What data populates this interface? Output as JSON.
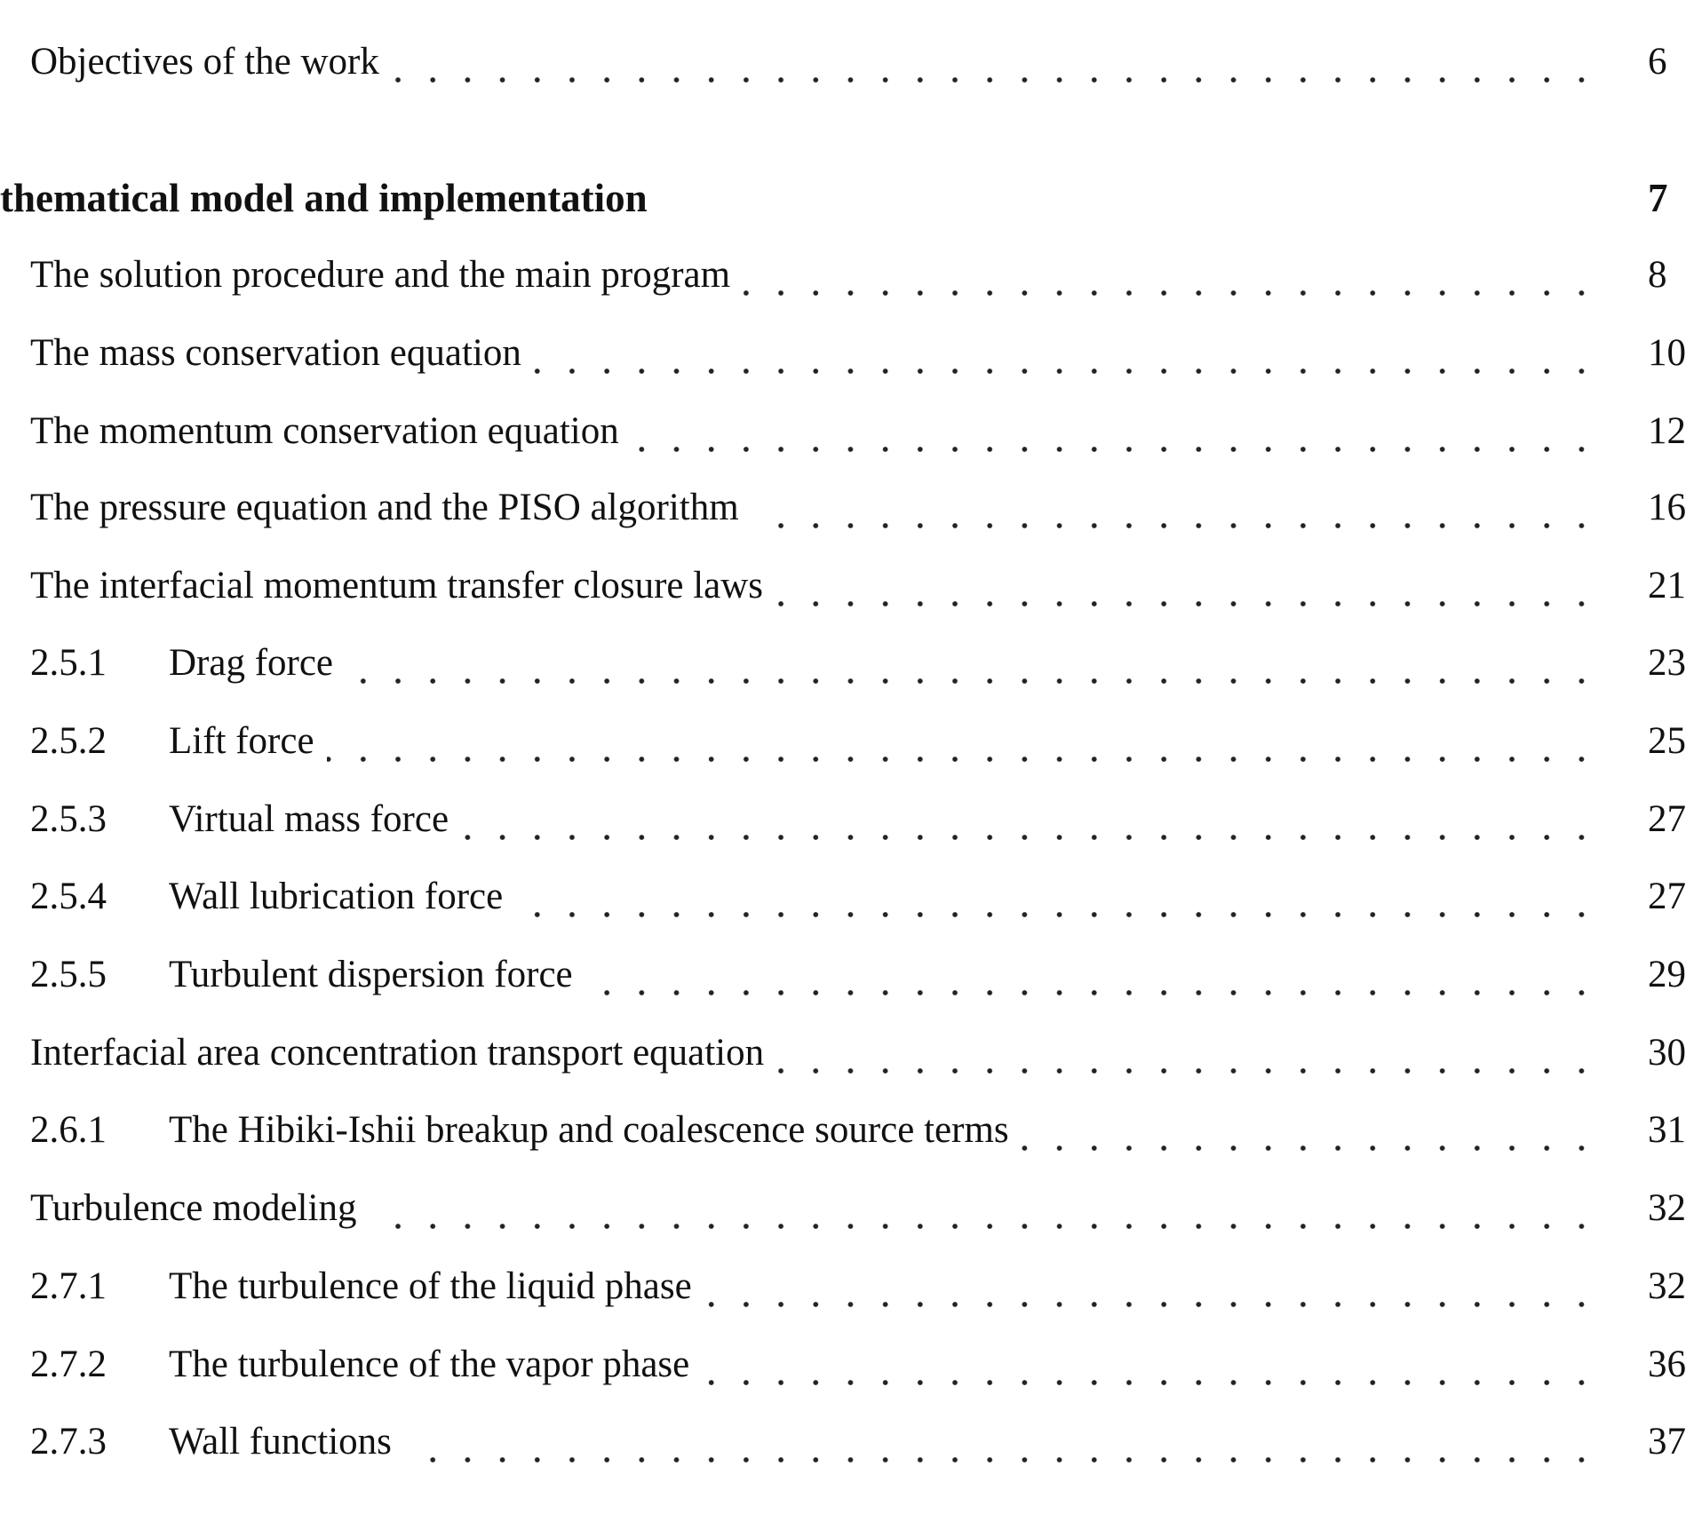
{
  "toc": [
    {
      "kind": "section",
      "title": "Objectives of the work",
      "page": "6"
    },
    {
      "kind": "chapter",
      "title": "thematical model and implementation",
      "page": "7"
    },
    {
      "kind": "section",
      "title": "The solution procedure and the main program",
      "page": "8"
    },
    {
      "kind": "section",
      "title": "The mass conservation equation",
      "page": "10"
    },
    {
      "kind": "section",
      "title": "The momentum conservation equation",
      "page": "12"
    },
    {
      "kind": "section",
      "title": "The pressure equation and the PISO algorithm",
      "page": "16"
    },
    {
      "kind": "section",
      "title": "The interfacial momentum transfer closure laws",
      "page": "21"
    },
    {
      "kind": "subsection",
      "number": "2.5.1",
      "title": "Drag force",
      "page": "23"
    },
    {
      "kind": "subsection",
      "number": "2.5.2",
      "title": "Lift force",
      "page": "25"
    },
    {
      "kind": "subsection",
      "number": "2.5.3",
      "title": "Virtual mass force",
      "page": "27"
    },
    {
      "kind": "subsection",
      "number": "2.5.4",
      "title": "Wall lubrication force",
      "page": "27"
    },
    {
      "kind": "subsection",
      "number": "2.5.5",
      "title": "Turbulent dispersion force",
      "page": "29"
    },
    {
      "kind": "section",
      "title": "Interfacial area concentration transport equation",
      "page": "30"
    },
    {
      "kind": "subsection",
      "number": "2.6.1",
      "title": "The Hibiki-Ishii breakup and coalescence source terms",
      "page": "31"
    },
    {
      "kind": "section",
      "title": "Turbulence modeling",
      "page": "32"
    },
    {
      "kind": "subsection",
      "number": "2.7.1",
      "title": "The turbulence of the liquid phase",
      "page": "32"
    },
    {
      "kind": "subsection",
      "number": "2.7.2",
      "title": "The turbulence of the vapor phase",
      "page": "36"
    },
    {
      "kind": "subsection",
      "number": "2.7.3",
      "title": "Wall functions",
      "page": "37"
    }
  ]
}
